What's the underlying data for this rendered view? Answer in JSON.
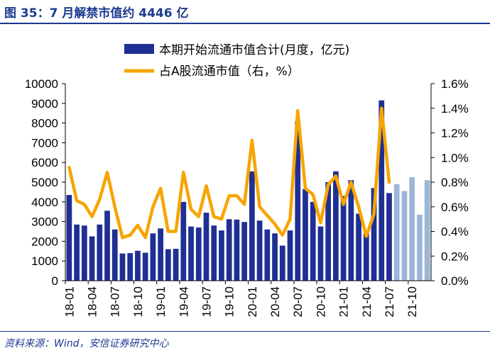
{
  "figure": {
    "title": "图 35：7 月解禁市值约 4446 亿",
    "source": "资料来源：Wind，安信证券研究中心"
  },
  "colors": {
    "bar_actual": "#1f2f93",
    "bar_forecast": "#9bb6d8",
    "line": "#f6a500",
    "title": "#1c3a8f",
    "axis": "#000000"
  },
  "chart_data": {
    "type": "bar+line",
    "months": [
      "18-01",
      "18-02",
      "18-03",
      "18-04",
      "18-05",
      "18-06",
      "18-07",
      "18-08",
      "18-09",
      "18-10",
      "18-11",
      "18-12",
      "19-01",
      "19-02",
      "19-03",
      "19-04",
      "19-05",
      "19-06",
      "19-07",
      "19-08",
      "19-09",
      "19-10",
      "19-11",
      "19-12",
      "20-01",
      "20-02",
      "20-03",
      "20-04",
      "20-05",
      "20-06",
      "20-07",
      "20-08",
      "20-09",
      "20-10",
      "20-11",
      "20-12",
      "21-01",
      "21-02",
      "21-03",
      "21-04",
      "21-05",
      "21-06",
      "21-07",
      "21-08",
      "21-09",
      "21-10",
      "21-11",
      "21-12"
    ],
    "x_tick_labels": [
      "18-01",
      "18-04",
      "18-07",
      "18-10",
      "19-01",
      "19-04",
      "19-07",
      "19-10",
      "20-01",
      "20-04",
      "20-07",
      "20-10",
      "21-01",
      "21-04",
      "21-07",
      "21-10"
    ],
    "series": [
      {
        "name": "本期开始流通市值合计(月度，亿元)",
        "axis": "left",
        "kind": "bar",
        "values": [
          4350,
          2850,
          2800,
          2250,
          2850,
          3550,
          2600,
          1380,
          1400,
          1520,
          1420,
          2400,
          2650,
          1600,
          1620,
          4000,
          2750,
          2700,
          3450,
          2800,
          2550,
          3120,
          3100,
          2980,
          5550,
          3050,
          2600,
          2400,
          1780,
          2550,
          8100,
          4650,
          4000,
          2750,
          5000,
          5550,
          4300,
          5100,
          3400,
          2400,
          4700,
          9150,
          4446,
          4900,
          4550,
          5250,
          3350,
          5100
        ],
        "forecast_from_index": 43
      },
      {
        "name": "占A股流通市值（右，%）",
        "axis": "right",
        "kind": "line",
        "values": [
          0.92,
          0.65,
          0.62,
          0.52,
          0.66,
          0.88,
          0.6,
          0.35,
          0.37,
          0.45,
          0.35,
          0.6,
          0.75,
          0.4,
          0.4,
          0.88,
          0.58,
          0.52,
          0.77,
          0.52,
          0.5,
          0.69,
          0.69,
          0.62,
          1.14,
          0.6,
          0.53,
          0.46,
          0.37,
          0.5,
          1.38,
          0.75,
          0.7,
          0.47,
          0.78,
          0.85,
          0.62,
          0.8,
          0.6,
          0.36,
          0.54,
          1.4,
          0.8
        ]
      }
    ],
    "y_left": {
      "min": 0,
      "max": 10000,
      "ticks": [
        "0",
        "1000",
        "2000",
        "3000",
        "4000",
        "5000",
        "6000",
        "7000",
        "8000",
        "9000",
        "10000"
      ]
    },
    "y_right": {
      "min": 0,
      "max": 1.6,
      "ticks": [
        "0.0%",
        "0.2%",
        "0.4%",
        "0.6%",
        "0.8%",
        "1.0%",
        "1.2%",
        "1.4%",
        "1.6%"
      ]
    },
    "legend_position": "top"
  }
}
